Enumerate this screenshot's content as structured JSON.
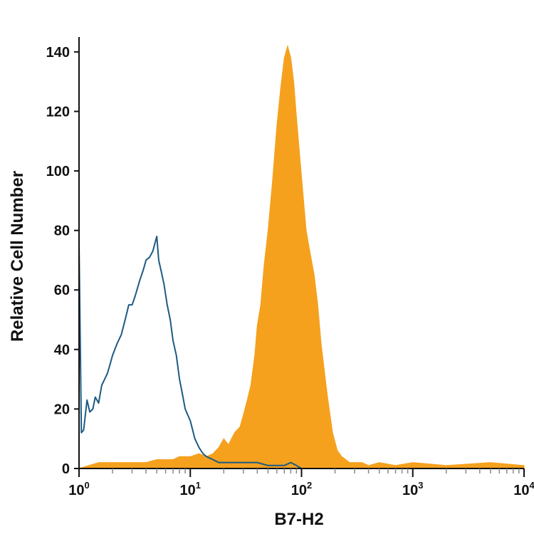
{
  "chart_data": {
    "type": "area",
    "xlabel": "B7-H2",
    "ylabel": "Relative Cell Number",
    "x_scale": "log",
    "xlim": [
      1,
      10000
    ],
    "ylim": [
      0,
      145
    ],
    "x_ticks": [
      {
        "value": 1,
        "base": "10",
        "exp": "0"
      },
      {
        "value": 10,
        "base": "10",
        "exp": "1"
      },
      {
        "value": 100,
        "base": "10",
        "exp": "2"
      },
      {
        "value": 1000,
        "base": "10",
        "exp": "3"
      },
      {
        "value": 10000,
        "base": "10",
        "exp": "4"
      }
    ],
    "y_ticks": [
      0,
      20,
      40,
      60,
      80,
      100,
      120,
      140
    ],
    "grid": false,
    "legend": "none",
    "series": [
      {
        "style": "outline",
        "color": "#1d5a84",
        "x": [
          1.0,
          1.05,
          1.1,
          1.18,
          1.25,
          1.33,
          1.4,
          1.5,
          1.6,
          1.7,
          1.8,
          1.9,
          2.0,
          2.2,
          2.4,
          2.6,
          2.8,
          3.0,
          3.2,
          3.5,
          3.8,
          4.0,
          4.3,
          4.6,
          5.0,
          5.2,
          5.5,
          5.8,
          6.2,
          6.6,
          7.0,
          7.5,
          8.0,
          8.5,
          9.0,
          10,
          11,
          12,
          13,
          14,
          16,
          18,
          20,
          25,
          30,
          40,
          50,
          60,
          70,
          80,
          90,
          100,
          1000,
          10000
        ],
        "y": [
          76,
          12,
          13,
          23,
          19,
          20,
          24,
          22,
          28,
          30,
          32,
          35,
          38,
          42,
          45,
          50,
          55,
          55,
          58,
          63,
          67,
          70,
          71,
          73,
          78,
          70,
          66,
          62,
          55,
          50,
          43,
          38,
          30,
          25,
          20,
          16,
          10,
          7,
          5,
          4,
          3,
          2,
          2,
          2,
          2,
          2,
          1,
          1,
          1,
          2,
          1,
          0,
          0,
          0
        ]
      },
      {
        "style": "filled",
        "color": "#f5a11e",
        "x": [
          1.0,
          1.5,
          2.0,
          3.0,
          4.0,
          5.0,
          7.0,
          8.0,
          10,
          12,
          14,
          16,
          18,
          20,
          22,
          25,
          28,
          30,
          32,
          35,
          38,
          40,
          43,
          46,
          50,
          55,
          60,
          65,
          70,
          75,
          80,
          85,
          90,
          100,
          110,
          120,
          130,
          140,
          150,
          170,
          190,
          210,
          230,
          250,
          270,
          300,
          350,
          400,
          500,
          700,
          1000,
          2000,
          5000,
          10000
        ],
        "y": [
          0,
          2,
          2,
          2,
          2,
          3,
          3,
          4,
          4,
          5,
          4,
          5,
          7,
          10,
          8,
          12,
          14,
          18,
          22,
          28,
          38,
          48,
          55,
          68,
          80,
          97,
          115,
          128,
          138,
          142,
          138,
          130,
          118,
          98,
          80,
          72,
          65,
          55,
          42,
          25,
          12,
          6,
          4,
          3,
          2,
          2,
          2,
          1,
          2,
          1,
          2,
          1,
          2,
          1
        ]
      }
    ]
  }
}
